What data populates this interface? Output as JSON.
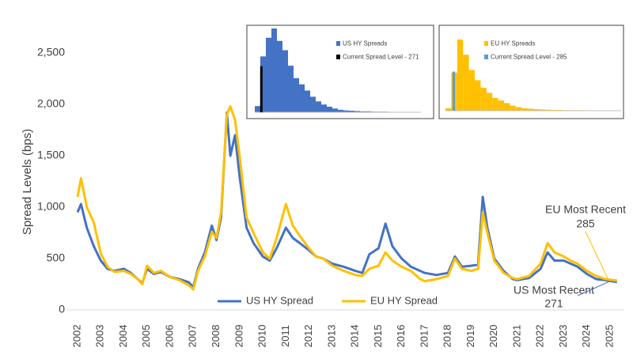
{
  "chart_data": [
    {
      "type": "line",
      "y_label": "Spread Levels (bps)",
      "x": [
        2002.0,
        2002.15,
        2002.4,
        2002.7,
        2003.0,
        2003.3,
        2003.6,
        2004.0,
        2004.3,
        2004.6,
        2004.8,
        2005.0,
        2005.3,
        2005.6,
        2006.0,
        2006.4,
        2006.8,
        2007.0,
        2007.2,
        2007.5,
        2007.8,
        2008.0,
        2008.2,
        2008.45,
        2008.6,
        2008.8,
        2009.0,
        2009.3,
        2009.6,
        2010.0,
        2010.3,
        2010.6,
        2011.0,
        2011.3,
        2011.6,
        2012.0,
        2012.3,
        2012.6,
        2013.0,
        2013.5,
        2014.0,
        2014.3,
        2014.6,
        2015.0,
        2015.3,
        2015.6,
        2016.0,
        2016.4,
        2016.8,
        2017.0,
        2017.5,
        2018.0,
        2018.3,
        2018.6,
        2019.0,
        2019.3,
        2019.5,
        2019.7,
        2020.0,
        2020.4,
        2020.8,
        2021.0,
        2021.5,
        2022.0,
        2022.3,
        2022.6,
        2023.0,
        2023.3,
        2023.6,
        2024.0,
        2024.4,
        2024.8,
        2025.3
      ],
      "series": [
        {
          "name": "US HY Spread",
          "color": "#4472c4",
          "values": [
            950,
            1030,
            800,
            620,
            480,
            400,
            380,
            400,
            360,
            300,
            260,
            400,
            350,
            370,
            320,
            300,
            270,
            220,
            400,
            560,
            820,
            680,
            900,
            1920,
            1500,
            1700,
            1300,
            800,
            650,
            520,
            480,
            600,
            800,
            700,
            650,
            580,
            520,
            500,
            450,
            420,
            380,
            360,
            540,
            600,
            840,
            620,
            500,
            420,
            380,
            360,
            340,
            360,
            520,
            420,
            430,
            440,
            1100,
            800,
            500,
            380,
            300,
            290,
            310,
            400,
            560,
            480,
            480,
            450,
            420,
            350,
            300,
            290,
            271
          ]
        },
        {
          "name": "EU HY Spread",
          "color": "#ffc000",
          "values": [
            1100,
            1280,
            1000,
            850,
            550,
            420,
            370,
            380,
            350,
            300,
            250,
            430,
            360,
            380,
            320,
            290,
            240,
            200,
            380,
            520,
            760,
            700,
            950,
            1900,
            1980,
            1850,
            1500,
            900,
            750,
            560,
            500,
            700,
            1030,
            820,
            720,
            600,
            520,
            500,
            430,
            380,
            340,
            330,
            400,
            430,
            560,
            480,
            420,
            380,
            300,
            280,
            300,
            330,
            500,
            400,
            380,
            400,
            950,
            750,
            480,
            360,
            310,
            300,
            330,
            450,
            650,
            560,
            520,
            480,
            450,
            380,
            330,
            300,
            285
          ]
        }
      ],
      "xlim": [
        2002,
        2025.6
      ],
      "xticks": [
        2002,
        2003,
        2004,
        2005,
        2006,
        2007,
        2008,
        2009,
        2010,
        2011,
        2012,
        2013,
        2014,
        2015,
        2016,
        2017,
        2018,
        2019,
        2020,
        2021,
        2022,
        2023,
        2024,
        2025
      ],
      "ylim": [
        0,
        2750
      ],
      "yticks": [
        0,
        {
          "value": 500,
          "label": "500"
        },
        {
          "value": 1000,
          "label": "1,000"
        },
        {
          "value": 1500,
          "label": "1,500"
        },
        {
          "value": 2000,
          "label": "2,000"
        },
        {
          "value": 2500,
          "label": "2,500"
        }
      ],
      "annotations": [
        {
          "text": "EU Most Recent",
          "value": 285
        },
        {
          "text": "US Most Recent",
          "value": 271
        }
      ]
    },
    {
      "type": "histogram",
      "bins": [
        200,
        260,
        320,
        380,
        440,
        500,
        560,
        620,
        680,
        740,
        800,
        860,
        920,
        980,
        1040,
        1100,
        1160,
        1220,
        1280,
        1340,
        1400,
        1460,
        1520,
        1580,
        1640,
        1700,
        1760,
        1820,
        1880,
        1940,
        2000
      ],
      "series": [
        {
          "name": "US HY Spreads",
          "color": "#4472c4",
          "values": [
            20,
            180,
            240,
            270,
            230,
            200,
            150,
            110,
            90,
            70,
            50,
            35,
            25,
            18,
            12,
            8,
            6,
            5,
            4,
            3,
            3,
            2,
            2,
            2,
            1,
            1,
            1,
            1,
            1,
            1
          ]
        }
      ],
      "marker": {
        "name": "Current Spread Level - 271",
        "color": "#000000",
        "x": 271
      }
    },
    {
      "type": "histogram",
      "bins": [
        200,
        260,
        320,
        380,
        440,
        500,
        560,
        620,
        680,
        740,
        800,
        860,
        920,
        980,
        1040,
        1100,
        1160,
        1220,
        1280,
        1340,
        1400,
        1460,
        1520,
        1580,
        1640,
        1700,
        1760,
        1820,
        1880,
        1940,
        2000
      ],
      "series": [
        {
          "name": "EU HY Spreads",
          "color": "#ffc000",
          "values": [
            10,
            150,
            280,
            220,
            160,
            120,
            90,
            70,
            50,
            40,
            30,
            20,
            14,
            10,
            8,
            6,
            5,
            4,
            3,
            3,
            2,
            2,
            2,
            2,
            1,
            1,
            1,
            1,
            1,
            1
          ]
        }
      ],
      "marker": {
        "name": "Current Spread Level - 285",
        "color": "#5b9bd5",
        "x": 285
      }
    }
  ]
}
